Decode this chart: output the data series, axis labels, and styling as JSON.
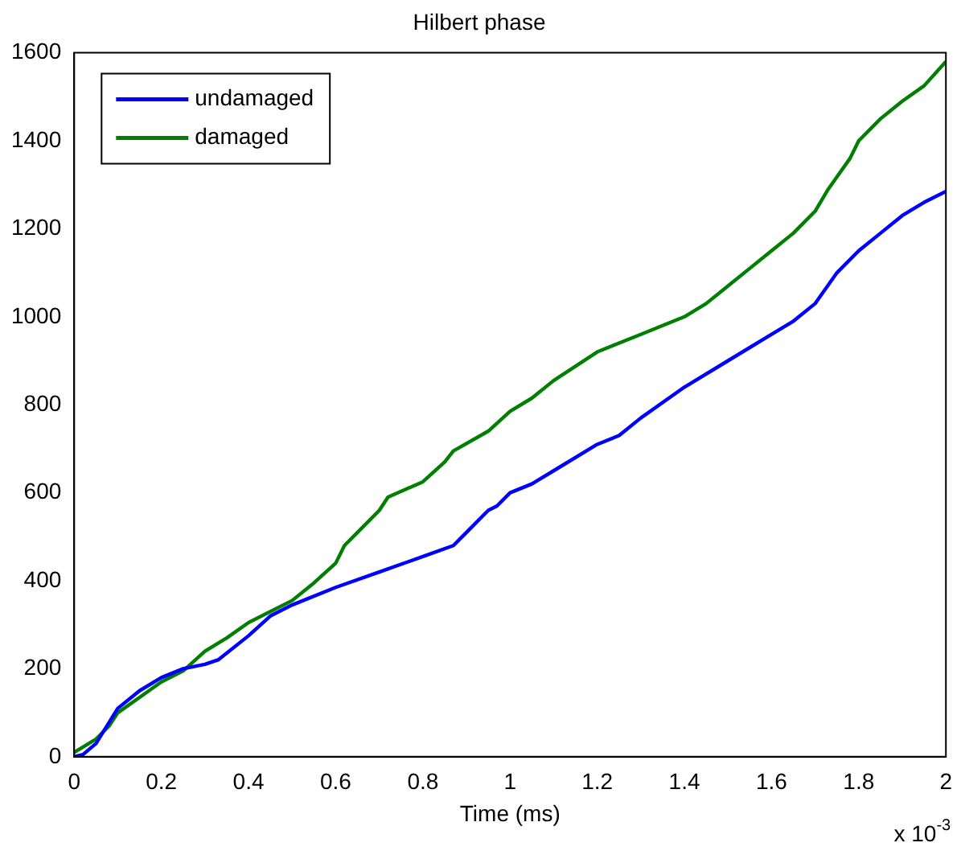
{
  "chart_data": {
    "type": "line",
    "title": "Hilbert phase",
    "xlabel": "Time (ms)",
    "annotations": [
      "x 10$^{-3}$"
    ],
    "xlim": [
      0,
      2
    ],
    "xticks": [
      0,
      0.2,
      0.4,
      0.6,
      0.8,
      1,
      1.2,
      1.4,
      1.6,
      1.8,
      2
    ],
    "ylim": [
      0,
      1600
    ],
    "yticks": [
      0,
      200,
      400,
      600,
      800,
      1000,
      1200,
      1400,
      1600
    ],
    "grid": false,
    "legend": "top left",
    "marker": "none",
    "line_style": "solid",
    "series": [
      {
        "name": "undamaged",
        "color": "#0000ff",
        "x": [
          0,
          0.02,
          0.05,
          0.1,
          0.15,
          0.2,
          0.25,
          0.3,
          0.33,
          0.4,
          0.45,
          0.5,
          0.6,
          0.7,
          0.8,
          0.87,
          0.9,
          0.95,
          0.97,
          1.0,
          1.05,
          1.1,
          1.2,
          1.25,
          1.3,
          1.4,
          1.5,
          1.6,
          1.65,
          1.7,
          1.75,
          1.8,
          1.85,
          1.9,
          1.95,
          2.0
        ],
        "values": [
          0,
          5,
          30,
          110,
          150,
          180,
          200,
          210,
          220,
          275,
          320,
          345,
          385,
          420,
          455,
          480,
          510,
          560,
          570,
          600,
          620,
          650,
          710,
          730,
          770,
          840,
          900,
          960,
          990,
          1030,
          1100,
          1150,
          1190,
          1230,
          1260,
          1285
        ]
      },
      {
        "name": "damaged",
        "color": "#007f00",
        "x": [
          0,
          0.05,
          0.08,
          0.1,
          0.15,
          0.2,
          0.25,
          0.3,
          0.35,
          0.4,
          0.5,
          0.55,
          0.6,
          0.62,
          0.65,
          0.7,
          0.72,
          0.8,
          0.85,
          0.87,
          0.95,
          1.0,
          1.05,
          1.1,
          1.2,
          1.3,
          1.35,
          1.4,
          1.45,
          1.5,
          1.55,
          1.6,
          1.65,
          1.7,
          1.73,
          1.78,
          1.8,
          1.85,
          1.9,
          1.95,
          2.0
        ],
        "values": [
          10,
          40,
          70,
          100,
          135,
          170,
          195,
          240,
          270,
          305,
          355,
          395,
          440,
          480,
          510,
          560,
          590,
          625,
          670,
          695,
          740,
          785,
          815,
          855,
          920,
          960,
          980,
          1000,
          1030,
          1070,
          1110,
          1150,
          1190,
          1240,
          1290,
          1360,
          1400,
          1450,
          1490,
          1525,
          1580
        ]
      }
    ]
  }
}
